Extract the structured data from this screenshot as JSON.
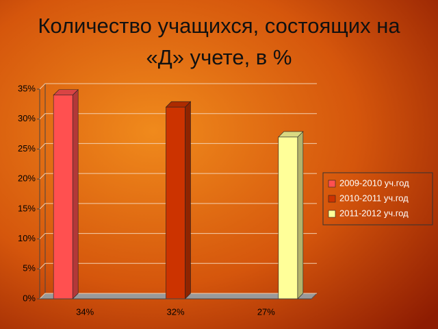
{
  "chart_data": {
    "type": "bar",
    "title": "Количество учащихся, состоящих на «Д» учете, в %",
    "categories": [
      "34%",
      "32%",
      "27%"
    ],
    "series": [
      {
        "name": "2009-2010 уч.год",
        "color": "#ff5050",
        "values": [
          34,
          null,
          null
        ]
      },
      {
        "name": "2010-2011 уч.год",
        "color": "#cc3300",
        "values": [
          null,
          32,
          null
        ]
      },
      {
        "name": "2011-2012 уч.год",
        "color": "#ffff99",
        "values": [
          null,
          null,
          27
        ]
      }
    ],
    "ylim": [
      0,
      35
    ],
    "yticks": [
      {
        "value": 0,
        "label": "0%"
      },
      {
        "value": 5,
        "label": "5%"
      },
      {
        "value": 10,
        "label": "10%"
      },
      {
        "value": 15,
        "label": "15%"
      },
      {
        "value": 20,
        "label": "20%"
      },
      {
        "value": 25,
        "label": "25%"
      },
      {
        "value": 30,
        "label": "30%"
      },
      {
        "value": 35,
        "label": "35%"
      }
    ],
    "grid": true,
    "legend": "right"
  }
}
